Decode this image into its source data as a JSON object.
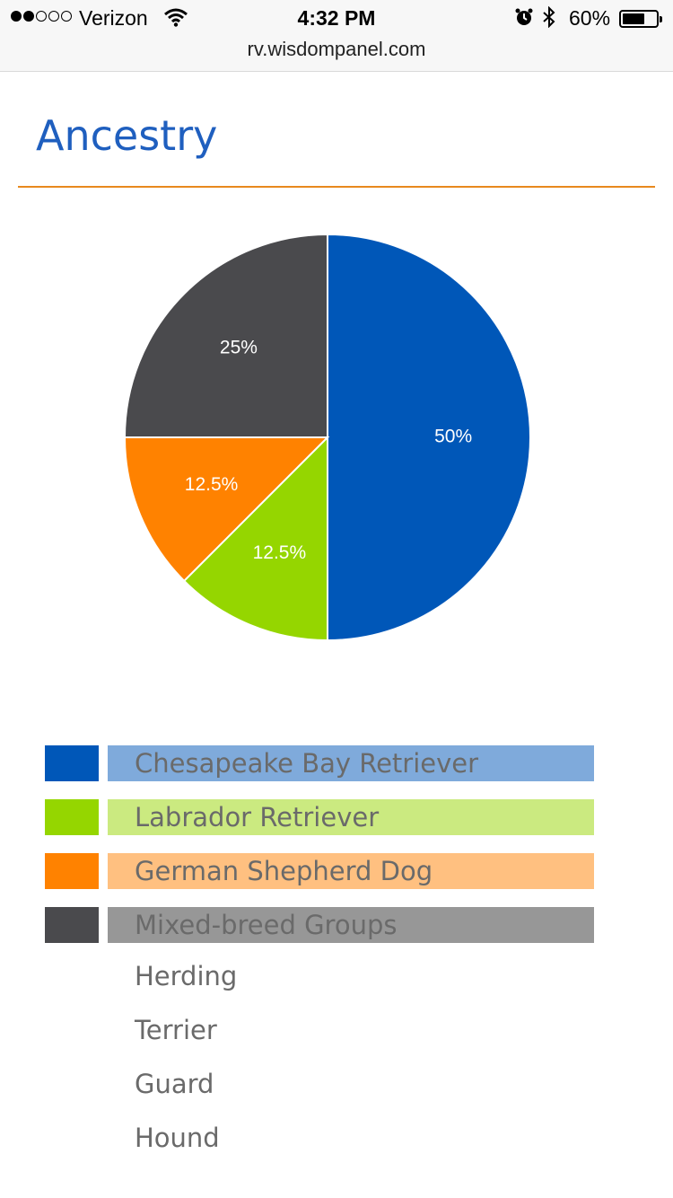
{
  "status": {
    "carrier": "Verizon",
    "time": "4:32 PM",
    "battery_pct": "60%",
    "battery_level": 0.6,
    "signal_bars": 2,
    "url": "rv.wisdompanel.com",
    "icons": [
      "wifi-icon",
      "alarm-icon",
      "bluetooth-icon",
      "battery-icon"
    ]
  },
  "page": {
    "title": "Ancestry",
    "title_color": "#1f5fbf",
    "rule_color": "#e8891e"
  },
  "chart_data": {
    "type": "pie",
    "labels": [
      "Chesapeake Bay Retriever",
      "Labrador Retriever",
      "German Shepherd Dog",
      "Mixed-breed Groups"
    ],
    "values": [
      50,
      12.5,
      12.5,
      25
    ],
    "value_labels": [
      "50%",
      "12.5%",
      "12.5%",
      "25%"
    ],
    "colors": [
      "#0057b8",
      "#95d600",
      "#ff8200",
      "#4a4a4d"
    ],
    "start": "12 o'clock, clockwise"
  },
  "legend": {
    "items": [
      {
        "label": "Chesapeake Bay Retriever",
        "swatch": "#0057b8",
        "bar": "#7faadb"
      },
      {
        "label": "Labrador Retriever",
        "swatch": "#95d600",
        "bar": "#cbea80"
      },
      {
        "label": "German Shepherd Dog",
        "swatch": "#ff8200",
        "bar": "#ffc080"
      },
      {
        "label": "Mixed-breed Groups",
        "swatch": "#4a4a4d",
        "bar": "#979797"
      }
    ],
    "groups": [
      "Herding",
      "Terrier",
      "Guard",
      "Hound"
    ]
  }
}
